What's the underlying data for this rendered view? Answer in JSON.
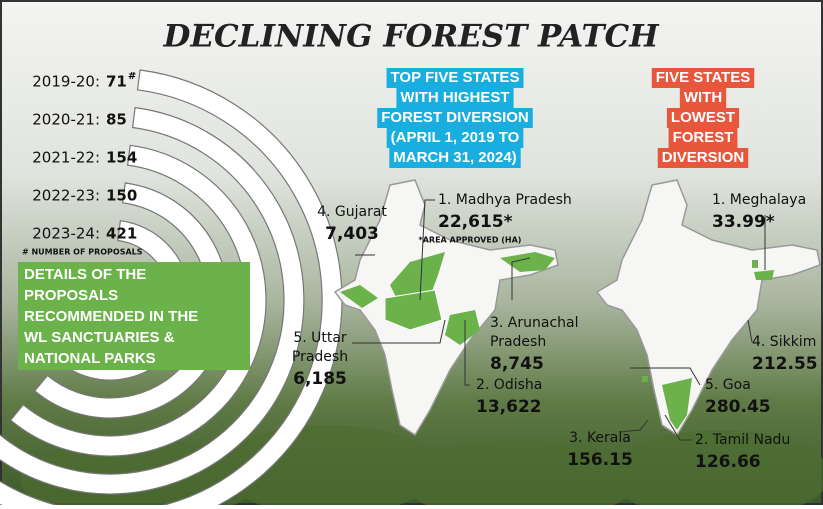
{
  "title": "DECLINING FOREST PATCH",
  "proposals": {
    "rows": [
      {
        "year": "2019-20:",
        "value": "71",
        "mark": "#"
      },
      {
        "year": "2020-21:",
        "value": "85"
      },
      {
        "year": "2021-22:",
        "value": "154"
      },
      {
        "year": "2022-23:",
        "value": "150"
      },
      {
        "year": "2023-24:",
        "value": "421"
      }
    ],
    "footnote": "# NUMBER OF PROPOSALS",
    "caption": [
      "DETAILS OF THE",
      "PROPOSALS",
      "RECOMMENDED IN THE",
      "WL SANCTUARIES &",
      "NATIONAL PARKS"
    ]
  },
  "highest": {
    "heading": [
      "TOP FIVE STATES",
      "WITH HIGHEST",
      "FOREST DIVERSION",
      "(APRIL 1, 2019 TO",
      "MARCH 31, 2024)"
    ],
    "note": "*AREA APPROVED (HA)",
    "states": [
      {
        "name": [
          "1. Madhya Pradesh"
        ],
        "value": "22,615*"
      },
      {
        "name": [
          "2. Odisha"
        ],
        "value": "13,622"
      },
      {
        "name": [
          "3. Arunachal",
          "Pradesh"
        ],
        "value": "8,745"
      },
      {
        "name": [
          "4. Gujarat"
        ],
        "value": "7,403"
      },
      {
        "name": [
          "5. Uttar",
          "Pradesh"
        ],
        "value": "6,185"
      }
    ]
  },
  "lowest": {
    "heading": [
      "FIVE STATES",
      "WITH",
      "LOWEST",
      "FOREST",
      "DIVERSION"
    ],
    "states": [
      {
        "name": [
          "1. Meghalaya"
        ],
        "value": "33.99*"
      },
      {
        "name": [
          "2. Tamil Nadu"
        ],
        "value": "126.66"
      },
      {
        "name": [
          "3. Kerala"
        ],
        "value": "156.15"
      },
      {
        "name": [
          "4. Sikkim"
        ],
        "value": "212.55"
      },
      {
        "name": [
          "5. Goa"
        ],
        "value": "280.45"
      }
    ]
  }
}
